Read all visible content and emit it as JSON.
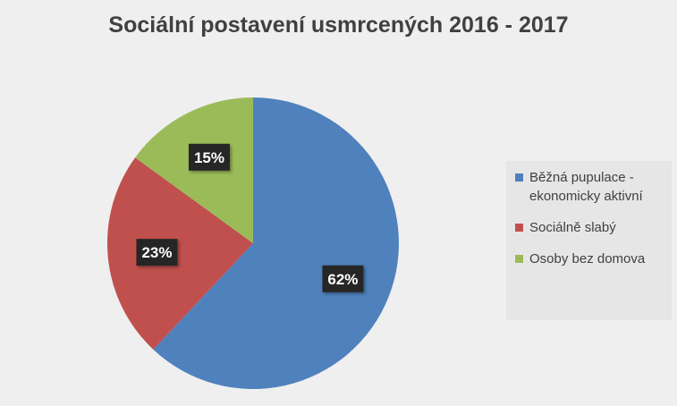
{
  "chart_data": {
    "type": "pie",
    "title": "Sociální postavení usmrcených 2016 - 2017",
    "slices": [
      {
        "label": "Běžná pupulace - ekonomicky aktivní",
        "value": 62,
        "value_label": "62%",
        "color": "#4f81bd"
      },
      {
        "label": "Sociálně slabý",
        "value": 23,
        "value_label": "23%",
        "color": "#c0504d"
      },
      {
        "label": "Osoby bez domova",
        "value": 15,
        "value_label": "15%",
        "color": "#9bbb59"
      }
    ],
    "legend_position": "right",
    "start_angle": "12 o'clock",
    "direction": "clockwise"
  }
}
